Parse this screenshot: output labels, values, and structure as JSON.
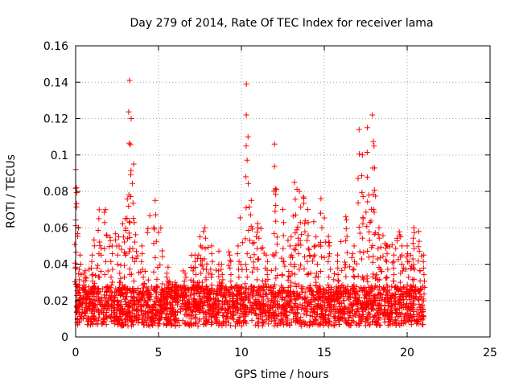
{
  "chart_data": {
    "type": "scatter",
    "title": "Day 279 of 2014, Rate Of TEC Index for receiver lama",
    "xlabel": "GPS time / hours",
    "ylabel": "ROTI / TECUs",
    "xlim": [
      0,
      25
    ],
    "ylim": [
      0,
      0.16
    ],
    "x_ticks": [
      "0",
      "5",
      "10",
      "15",
      "20",
      "25"
    ],
    "y_ticks": [
      "0",
      "0.02",
      "0.04",
      "0.06",
      "0.08",
      "0.1",
      "0.12",
      "0.14",
      "0.16"
    ],
    "grid": true,
    "marker": "+",
    "color": "#ff0000",
    "x_range_of_data": [
      0,
      21
    ],
    "series": [
      {
        "x": [
          0.0,
          0.05,
          0.3,
          0.5,
          1.0,
          1.4,
          1.8,
          2.2,
          2.6,
          3.0,
          3.25,
          3.35,
          3.5,
          4.0,
          4.8,
          5.5,
          6.0,
          6.6,
          7.2,
          7.5,
          7.8,
          8.2,
          8.8,
          9.3,
          9.8,
          10.3,
          10.4,
          10.6,
          11.0,
          11.5,
          12.0,
          12.1,
          12.5,
          13.0,
          13.2,
          13.5,
          14.0,
          14.5,
          14.8,
          15.3,
          15.8,
          16.3,
          16.8,
          17.1,
          17.3,
          17.6,
          17.9,
          18.0,
          18.3,
          18.8,
          19.2,
          19.6,
          20.0,
          20.4,
          20.7,
          21.0
        ],
        "y": [
          0.092,
          0.082,
          0.04,
          0.035,
          0.045,
          0.065,
          0.07,
          0.05,
          0.055,
          0.065,
          0.141,
          0.12,
          0.095,
          0.05,
          0.075,
          0.035,
          0.03,
          0.035,
          0.045,
          0.055,
          0.06,
          0.05,
          0.04,
          0.045,
          0.05,
          0.139,
          0.11,
          0.075,
          0.06,
          0.045,
          0.106,
          0.081,
          0.07,
          0.055,
          0.085,
          0.08,
          0.07,
          0.055,
          0.076,
          0.05,
          0.045,
          0.066,
          0.05,
          0.114,
          0.1,
          0.115,
          0.122,
          0.105,
          0.06,
          0.05,
          0.045,
          0.055,
          0.05,
          0.06,
          0.058,
          0.045
        ]
      }
    ]
  }
}
